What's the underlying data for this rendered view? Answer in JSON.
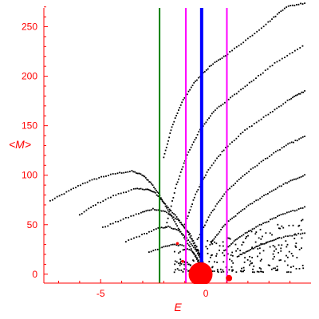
{
  "chart_data": {
    "type": "scatter",
    "xlabel": "E",
    "ylabel": "<M>",
    "xlim": [
      -7.7,
      5.0
    ],
    "ylim": [
      -9,
      277
    ],
    "xticks": [
      -5,
      0
    ],
    "yticks": [
      0,
      50,
      100,
      150,
      200,
      250
    ],
    "grid": false,
    "colors": {
      "axis": "#ff0000",
      "points": "#000000",
      "line_green": "#008000",
      "line_magenta": "#ff00ff",
      "line_blue": "#0000ff",
      "blob": "#ff0000"
    },
    "vertical_lines": [
      {
        "x": -2.2,
        "color": "#008000",
        "width": 2
      },
      {
        "x": -0.95,
        "color": "#ff00ff",
        "width": 2
      },
      {
        "x": -0.2,
        "color": "#0000ff",
        "width": 4
      },
      {
        "x": 1.0,
        "color": "#ff00ff",
        "width": 2
      }
    ],
    "point_tracks": [
      {
        "points": [
          [
            -7.4,
            74
          ],
          [
            -6.6,
            83
          ],
          [
            -5.8,
            92
          ],
          [
            -5.0,
            98
          ],
          [
            -4.2,
            102
          ],
          [
            -3.5,
            104
          ],
          [
            -3.0,
            100
          ],
          [
            -2.6,
            92
          ],
          [
            -2.2,
            80
          ],
          [
            -1.8,
            65
          ],
          [
            -1.4,
            50
          ],
          [
            -1.0,
            36
          ],
          [
            -0.6,
            22
          ],
          [
            -0.3,
            10
          ]
        ],
        "n": 95
      },
      {
        "points": [
          [
            -6.0,
            60
          ],
          [
            -5.2,
            71
          ],
          [
            -4.3,
            80
          ],
          [
            -3.4,
            86
          ],
          [
            -2.8,
            86
          ],
          [
            -2.4,
            82
          ],
          [
            -1.9,
            70
          ],
          [
            -1.4,
            58
          ],
          [
            -0.9,
            44
          ],
          [
            -0.5,
            28
          ],
          [
            -0.2,
            14
          ]
        ],
        "n": 75
      },
      {
        "points": [
          [
            -4.9,
            47
          ],
          [
            -4.0,
            55
          ],
          [
            -3.1,
            62
          ],
          [
            -2.5,
            66
          ],
          [
            -1.9,
            63
          ],
          [
            -1.3,
            54
          ],
          [
            -0.8,
            42
          ],
          [
            -0.4,
            26
          ],
          [
            -0.1,
            10
          ]
        ],
        "n": 60
      },
      {
        "points": [
          [
            -3.8,
            33
          ],
          [
            -3.0,
            40
          ],
          [
            -2.3,
            46
          ],
          [
            -1.8,
            48
          ],
          [
            -1.3,
            44
          ],
          [
            -0.8,
            34
          ],
          [
            -0.4,
            22
          ],
          [
            -0.1,
            8
          ]
        ],
        "n": 45
      },
      {
        "points": [
          [
            -2.7,
            22
          ],
          [
            -2.1,
            27
          ],
          [
            -1.6,
            30
          ],
          [
            -1.1,
            29
          ],
          [
            -0.6,
            22
          ],
          [
            -0.2,
            10
          ]
        ],
        "n": 30
      },
      {
        "points": [
          [
            -2.0,
            118
          ],
          [
            -1.6,
            150
          ],
          [
            -1.1,
            175
          ],
          [
            -0.5,
            195
          ],
          [
            0.2,
            210
          ],
          [
            1.0,
            222
          ],
          [
            2.0,
            238
          ],
          [
            3.0,
            255
          ],
          [
            3.8,
            270
          ],
          [
            4.7,
            274
          ]
        ],
        "n": 85
      },
      {
        "points": [
          [
            -1.9,
            48
          ],
          [
            -1.4,
            90
          ],
          [
            -0.9,
            120
          ],
          [
            -0.3,
            145
          ],
          [
            0.4,
            165
          ],
          [
            1.3,
            180
          ],
          [
            2.3,
            197
          ],
          [
            3.4,
            215
          ],
          [
            4.6,
            230
          ]
        ],
        "n": 80
      },
      {
        "points": [
          [
            -1.0,
            50
          ],
          [
            -0.5,
            80
          ],
          [
            0.1,
            105
          ],
          [
            0.9,
            127
          ],
          [
            1.9,
            146
          ],
          [
            3.0,
            162
          ],
          [
            4.0,
            177
          ],
          [
            4.7,
            185
          ]
        ],
        "n": 70
      },
      {
        "points": [
          [
            -0.4,
            35
          ],
          [
            0.2,
            60
          ],
          [
            0.9,
            82
          ],
          [
            1.8,
            100
          ],
          [
            2.8,
            116
          ],
          [
            3.8,
            130
          ],
          [
            4.7,
            139
          ]
        ],
        "n": 62
      },
      {
        "points": [
          [
            0.2,
            30
          ],
          [
            0.9,
            50
          ],
          [
            1.8,
            66
          ],
          [
            2.8,
            80
          ],
          [
            3.8,
            92
          ],
          [
            4.7,
            100
          ]
        ],
        "n": 55
      },
      {
        "points": [
          [
            0.8,
            22
          ],
          [
            1.6,
            38
          ],
          [
            2.6,
            50
          ],
          [
            3.6,
            60
          ],
          [
            4.7,
            68
          ]
        ],
        "n": 48
      },
      {
        "points": [
          [
            1.5,
            18
          ],
          [
            2.4,
            28
          ],
          [
            3.4,
            36
          ],
          [
            4.7,
            42
          ]
        ],
        "n": 40
      }
    ],
    "scatter_cloud": {
      "x_range": [
        -1.5,
        4.8
      ],
      "y_range": [
        2,
        60
      ],
      "n": 240
    },
    "markers": [
      {
        "x": -0.25,
        "y": 0,
        "r_px": 15,
        "color": "#ff0000"
      },
      {
        "x": 1.1,
        "y": -4,
        "r_px": 4,
        "color": "#ff0000"
      },
      {
        "x": -1.35,
        "y": 31,
        "r_px": 1.8,
        "color": "#ff0000"
      },
      {
        "x": -1.1,
        "y": 13,
        "r_px": 1.8,
        "color": "#ff0000"
      }
    ]
  }
}
